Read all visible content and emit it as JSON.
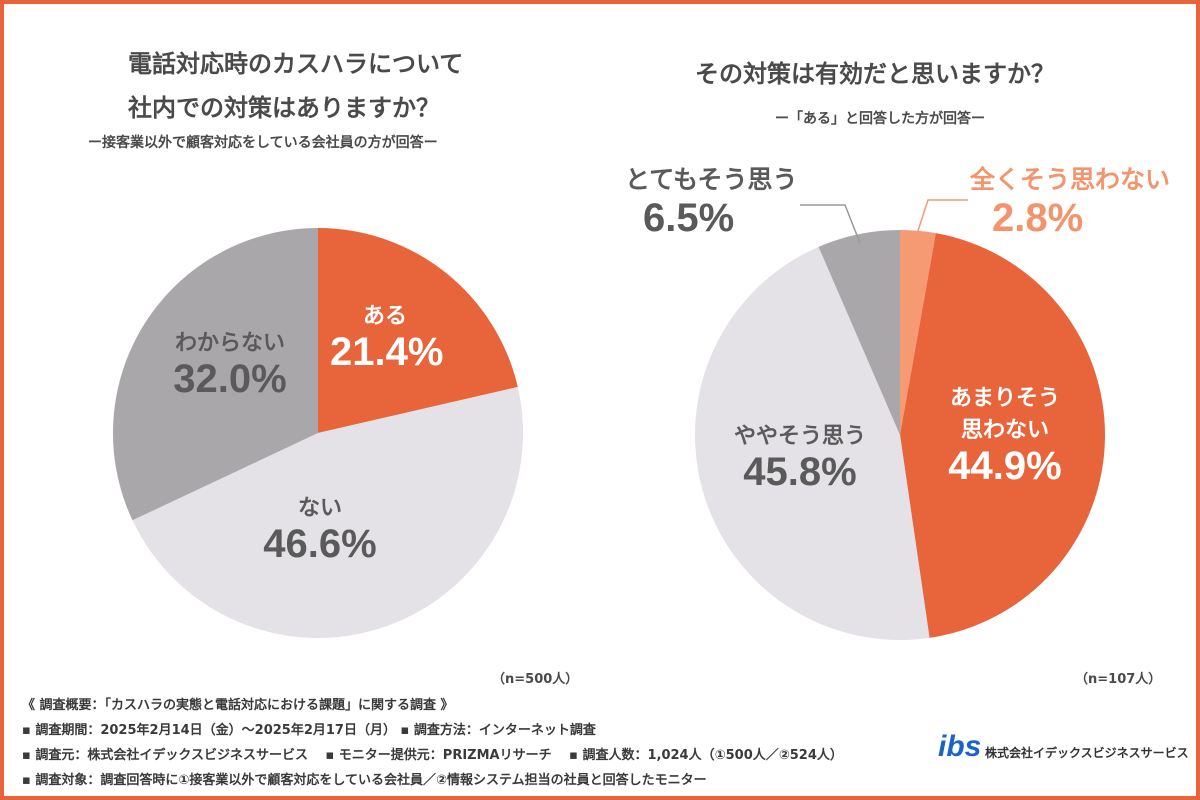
{
  "chart_data": [
    {
      "type": "pie",
      "title": "電話対応時のカスハラについて\n社内での対策はありますか？",
      "title_line1": "電話対応時のカスハラについて",
      "title_line2": "社内での対策はありますか？",
      "subtitle": "ー接客業以外で顧客対応をしている会社員の方が回答ー",
      "n_label": "（n=500人）",
      "slices": [
        {
          "label": "ある",
          "value": 21.4,
          "display": "21.4%",
          "color": "#E8643A"
        },
        {
          "label": "ない",
          "value": 46.6,
          "display": "46.6%",
          "color": "#E4E2E6"
        },
        {
          "label": "わからない",
          "value": 32.0,
          "display": "32.0%",
          "color": "#A9A7AA"
        }
      ]
    },
    {
      "type": "pie",
      "title": "その対策は有効だと思いますか？",
      "subtitle": "ー「ある」と回答した方が回答ー",
      "n_label": "（n=107人）",
      "slices": [
        {
          "label": "全くそう思わない",
          "value": 2.8,
          "display": "2.8%",
          "color": "#F59A72"
        },
        {
          "label": "あまりそう思わない",
          "label_line1": "あまりそう",
          "label_line2": "思わない",
          "value": 44.9,
          "display": "44.9%",
          "color": "#E8643A"
        },
        {
          "label": "ややそう思う",
          "value": 45.8,
          "display": "45.8%",
          "color": "#E4E2E6"
        },
        {
          "label": "とてもそう思う",
          "value": 6.5,
          "display": "6.5%",
          "color": "#A9A7AA"
        }
      ]
    }
  ],
  "footer": {
    "overview": "《 調査概要：「カスハラの実態と電話対応における課題」に関する調査 》",
    "line1": "▪ 調査期間：2025年2月14日（金）〜2025年2月17日（月） ▪ 調査方法：インターネット調査",
    "line2": "▪ 調査元：株式会社イデックスビジネスサービス　 ▪ モニター提供元：PRIZMAリサーチ　 ▪ 調査人数：1,024人（①500人／②524人）",
    "line3": "▪ 調査対象：調査回答時に①接客業以外で顧客対応をしている会社員／②情報システム担当の社員と回答したモニター",
    "logo_mark": "ibs",
    "company": "株式会社イデックスビジネスサービス"
  }
}
